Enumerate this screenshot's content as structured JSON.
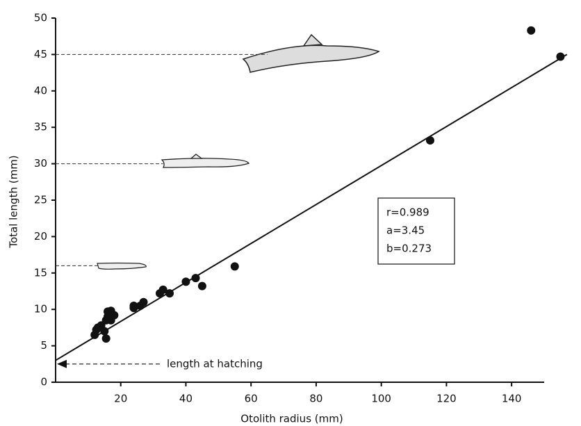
{
  "chart_data": {
    "type": "scatter",
    "xlabel": "Otolith radius (mm)",
    "ylabel": "Total length (mm)",
    "x": [
      12,
      12.5,
      13,
      14,
      15,
      15.5,
      15.5,
      16,
      16,
      17,
      17,
      18,
      24,
      24,
      26,
      27,
      32,
      33,
      35,
      40,
      43,
      45,
      55,
      115,
      146,
      155
    ],
    "values": [
      6.5,
      7.2,
      7.5,
      7.8,
      7,
      6,
      8.5,
      9,
      9.7,
      8.5,
      9.8,
      9.2,
      10.2,
      10.5,
      10.5,
      11,
      12.2,
      12.7,
      12.2,
      13.8,
      14.3,
      13.2,
      15.9,
      33.2,
      48.3,
      44.7
    ],
    "color": "#111111",
    "fit_line": {
      "x": [
        0,
        157
      ],
      "y": [
        3.0,
        45.0
      ]
    },
    "reference_lines": [
      {
        "y": 45,
        "x_end": 65
      },
      {
        "y": 30,
        "x_end": 33
      },
      {
        "y": 16,
        "x_end": 13
      }
    ],
    "hatching": {
      "y": 2.5,
      "x_start": 32,
      "label": "length at hatching"
    },
    "stats": [
      "r=0.989",
      "a=3.45",
      "b=0.273"
    ],
    "xlim": [
      0,
      150
    ],
    "ylim": [
      0,
      50
    ],
    "xticks": [
      20,
      40,
      60,
      80,
      100,
      120,
      140
    ],
    "yticks": [
      0,
      5,
      10,
      15,
      20,
      25,
      30,
      35,
      40,
      45,
      50
    ]
  }
}
